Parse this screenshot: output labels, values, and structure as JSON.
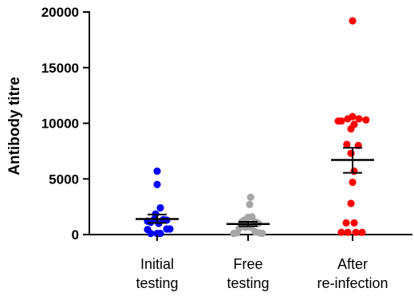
{
  "chart_data": {
    "type": "scatter",
    "ylabel": "Antibody titre",
    "xlabel": "",
    "ylim": [
      0,
      20000
    ],
    "yticks": [
      0,
      5000,
      10000,
      15000,
      20000
    ],
    "categories": [
      {
        "line1": "Initial",
        "line2": "testing"
      },
      {
        "line1": "Free",
        "line2": "testing"
      },
      {
        "line1": "After",
        "line2": "re-infection"
      }
    ],
    "series": [
      {
        "color": "#0000ff",
        "mean": 1400,
        "sem_low": 1050,
        "sem_high": 1800,
        "points": [
          {
            "offset": -0.3,
            "value": 1200
          },
          {
            "offset": -0.1,
            "value": 1350
          },
          {
            "offset": 0.05,
            "value": 1000
          },
          {
            "offset": 0.2,
            "value": 1350
          },
          {
            "offset": 0.3,
            "value": 1300
          },
          {
            "offset": 0.1,
            "value": 2400
          },
          {
            "offset": -0.05,
            "value": 1850
          },
          {
            "offset": -0.2,
            "value": 1100
          },
          {
            "offset": -0.3,
            "value": 450
          },
          {
            "offset": 0.0,
            "value": 100
          },
          {
            "offset": -0.2,
            "value": 100
          },
          {
            "offset": 0.1,
            "value": 100
          },
          {
            "offset": 0.3,
            "value": 500
          },
          {
            "offset": 0.4,
            "value": 500
          },
          {
            "offset": 0.0,
            "value": 4500
          },
          {
            "offset": 0.0,
            "value": 5700
          }
        ]
      },
      {
        "color": "#a6a6a6",
        "mean": 950,
        "sem_low": 750,
        "sem_high": 1150,
        "points": [
          {
            "offset": 0.08,
            "value": 3350
          },
          {
            "offset": 0.05,
            "value": 2700
          },
          {
            "offset": 0.0,
            "value": 1550
          },
          {
            "offset": 0.12,
            "value": 1600
          },
          {
            "offset": -0.12,
            "value": 1300
          },
          {
            "offset": -0.2,
            "value": 1150
          },
          {
            "offset": 0.22,
            "value": 1150
          },
          {
            "offset": 0.32,
            "value": 1000
          },
          {
            "offset": -0.28,
            "value": 550
          },
          {
            "offset": -0.08,
            "value": 650
          },
          {
            "offset": 0.08,
            "value": 650
          },
          {
            "offset": 0.22,
            "value": 250
          },
          {
            "offset": -0.35,
            "value": 150
          },
          {
            "offset": 0.35,
            "value": 150
          },
          {
            "offset": -0.45,
            "value": 100
          },
          {
            "offset": 0.45,
            "value": 100
          }
        ]
      },
      {
        "color": "#ff0000",
        "mean": 6700,
        "sem_low": 5550,
        "sem_high": 7800,
        "points": [
          {
            "offset": -0.0,
            "value": 19200
          },
          {
            "offset": -0.45,
            "value": 10200
          },
          {
            "offset": -0.35,
            "value": 10200
          },
          {
            "offset": -0.15,
            "value": 10400
          },
          {
            "offset": 0.0,
            "value": 10600
          },
          {
            "offset": 0.2,
            "value": 10400
          },
          {
            "offset": 0.42,
            "value": 10300
          },
          {
            "offset": 0.05,
            "value": 9900
          },
          {
            "offset": -0.05,
            "value": 9500
          },
          {
            "offset": -0.18,
            "value": 8100
          },
          {
            "offset": 0.18,
            "value": 8000
          },
          {
            "offset": -0.05,
            "value": 7300
          },
          {
            "offset": 0.05,
            "value": 5700
          },
          {
            "offset": 0.0,
            "value": 4700
          },
          {
            "offset": -0.05,
            "value": 2800
          },
          {
            "offset": -0.2,
            "value": 1050
          },
          {
            "offset": 0.05,
            "value": 1050
          },
          {
            "offset": -0.35,
            "value": 200
          },
          {
            "offset": -0.15,
            "value": 200
          },
          {
            "offset": 0.1,
            "value": 200
          },
          {
            "offset": 0.3,
            "value": 200
          }
        ]
      }
    ]
  }
}
